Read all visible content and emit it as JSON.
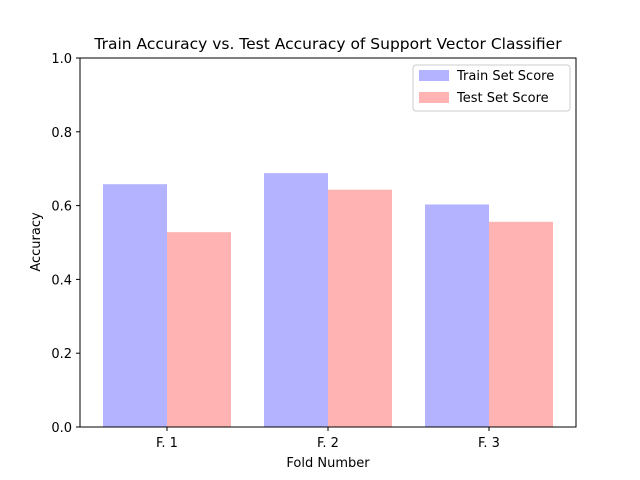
{
  "chart_data": {
    "type": "bar",
    "title": "Train Accuracy vs. Test Accuracy of Support Vector Classifier",
    "xlabel": "Fold Number",
    "ylabel": "Accuracy",
    "categories": [
      "F. 1",
      "F. 2",
      "F. 3"
    ],
    "ylim": [
      0,
      1.0
    ],
    "yticks": [
      "0.0",
      "0.2",
      "0.4",
      "0.6",
      "0.8",
      "1.0"
    ],
    "grid": false,
    "legend_position": "top-right",
    "series": [
      {
        "name": "Train Set Score",
        "color": "#b3b3ff",
        "values": [
          0.658,
          0.688,
          0.603
        ]
      },
      {
        "name": "Test Set Score",
        "color": "#ffb3b3",
        "values": [
          0.528,
          0.643,
          0.556
        ]
      }
    ]
  }
}
